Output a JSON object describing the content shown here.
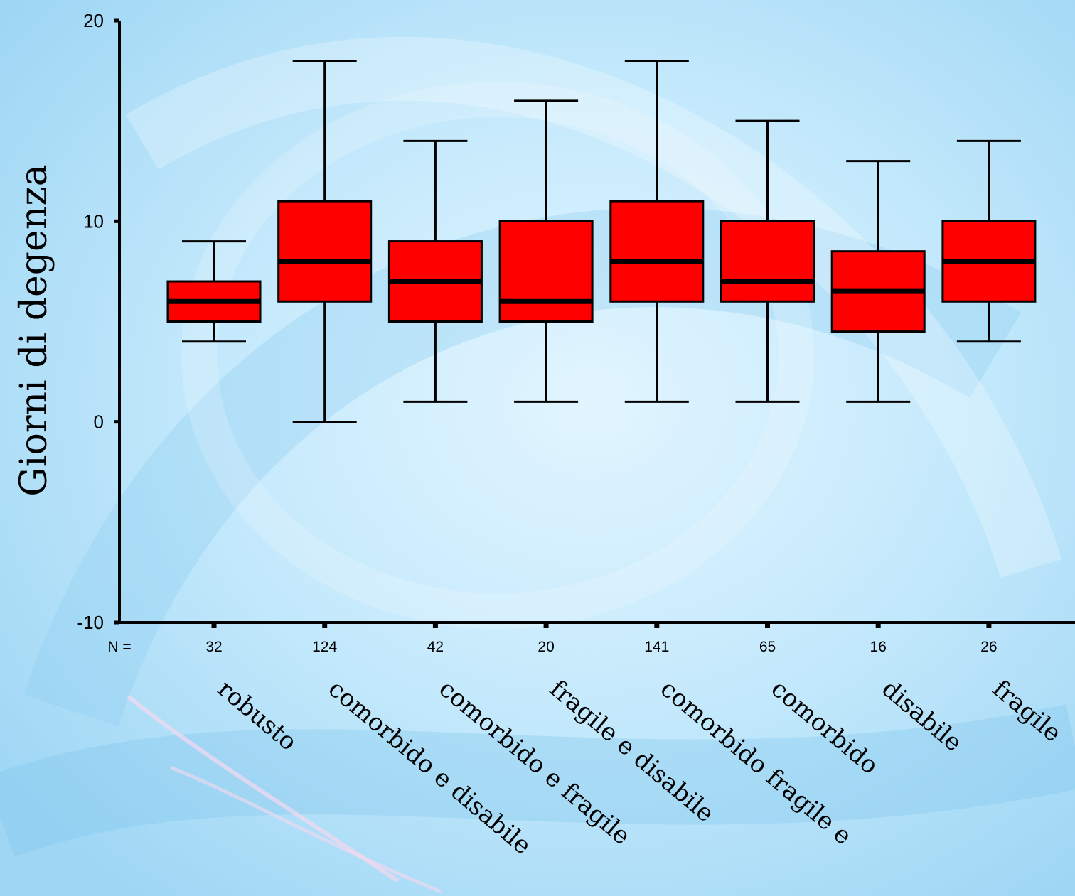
{
  "chart_data": {
    "type": "boxplot",
    "ylabel": "Giorni di degenza",
    "ylim": [
      -10,
      20
    ],
    "yticks": [
      "20",
      "10",
      "0",
      "-10"
    ],
    "n_prefix": "N =",
    "categories": [
      "robusto",
      "comorbido e disabile",
      "comorbido e fragile",
      "fragile e disabile",
      "comorbido fragile e",
      "comorbido",
      "disabile",
      "fragile"
    ],
    "n": [
      "32",
      "124",
      "42",
      "20",
      "141",
      "65",
      "16",
      "26"
    ],
    "boxes": [
      {
        "whisker_low": 4,
        "q1": 5,
        "median": 6,
        "q3": 7,
        "whisker_high": 9
      },
      {
        "whisker_low": 0,
        "q1": 6,
        "median": 8,
        "q3": 11,
        "whisker_high": 18
      },
      {
        "whisker_low": 1,
        "q1": 5,
        "median": 7,
        "q3": 9,
        "whisker_high": 14
      },
      {
        "whisker_low": 1,
        "q1": 5,
        "median": 6,
        "q3": 10,
        "whisker_high": 16
      },
      {
        "whisker_low": 1,
        "q1": 6,
        "median": 8,
        "q3": 11,
        "whisker_high": 18
      },
      {
        "whisker_low": 1,
        "q1": 6,
        "median": 7,
        "q3": 10,
        "whisker_high": 15
      },
      {
        "whisker_low": 1,
        "q1": 4.5,
        "median": 6.5,
        "q3": 8.5,
        "whisker_high": 13
      },
      {
        "whisker_low": 4,
        "q1": 6,
        "median": 8,
        "q3": 10,
        "whisker_high": 14
      }
    ],
    "box_color": "#ff0000",
    "line_color": "#000000"
  }
}
